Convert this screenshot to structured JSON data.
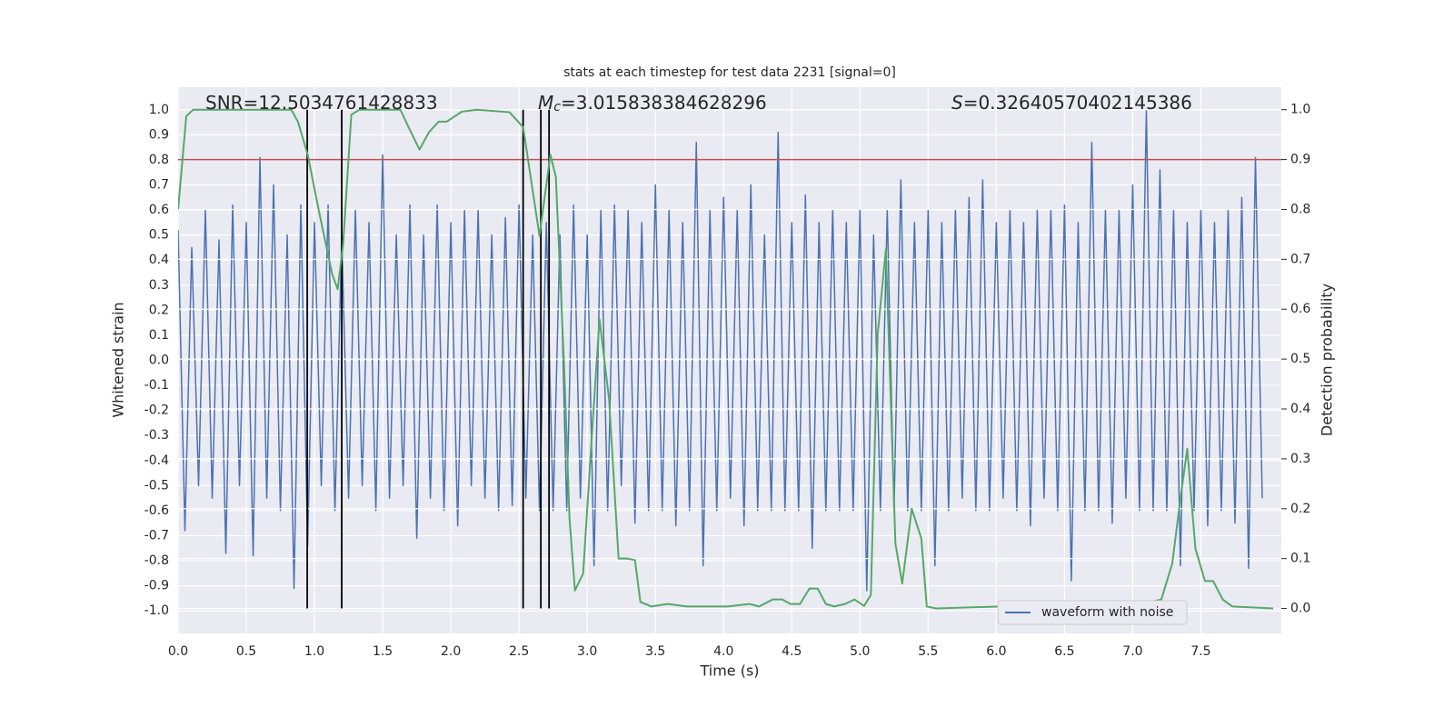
{
  "chart_data": {
    "type": "line",
    "title": "stats at each timestep for test data 2231 [signal=0]",
    "xlabel": "Time (s)",
    "ylabel": "Whitened strain",
    "y2label": "Detection probability",
    "xlim": [
      0,
      8.09
    ],
    "ylim": [
      -1.09,
      1.09
    ],
    "y2lim": [
      -0.05,
      1.045
    ],
    "xticks": [
      {
        "value": 0,
        "label": "0.0"
      },
      0.5,
      {
        "value": 1,
        "label": "1.0"
      },
      1.5,
      {
        "value": 2,
        "label": "2.0"
      },
      2.5,
      {
        "value": 3,
        "label": "3.0"
      },
      3.5,
      {
        "value": 4,
        "label": "4.0"
      },
      4.5,
      {
        "value": 5,
        "label": "5.0"
      },
      5.5,
      {
        "value": 6,
        "label": "6.0"
      },
      6.5,
      {
        "value": 7,
        "label": "7.0"
      },
      7.5
    ],
    "yticks": [
      {
        "value": -1,
        "label": "-1.0"
      },
      -0.9,
      -0.8,
      -0.7,
      -0.6,
      -0.5,
      -0.4,
      -0.3,
      -0.2,
      -0.1,
      {
        "value": 0,
        "label": "0.0"
      },
      0.1,
      0.2,
      0.3,
      0.4,
      0.5,
      0.6,
      0.7,
      0.8,
      0.9,
      {
        "value": 1,
        "label": "1.0"
      }
    ],
    "y2ticks": [
      {
        "value": 0,
        "label": "0.0"
      },
      0.1,
      0.2,
      0.3,
      0.4,
      0.5,
      0.6,
      0.7,
      0.8,
      0.9,
      {
        "value": 1,
        "label": "1.0"
      }
    ],
    "grid": true,
    "legend": "lower right",
    "annotations": [
      {
        "text": "SNR=12.5034761428833"
      },
      {
        "symbol": "M",
        "subscript": "c",
        "text": "=3.015838384628296"
      },
      {
        "symbol": "S",
        "text": "=0.32640570402145386"
      }
    ],
    "hlines": [
      {
        "value": 0.9,
        "axis": "y2",
        "color": "#c44e52"
      }
    ],
    "vlines": {
      "values": [
        0.947,
        1.2,
        2.53,
        2.66,
        2.72
      ],
      "span": [
        0,
        1
      ],
      "axis": "y2",
      "color": "#000000"
    },
    "series": [
      {
        "name": "waveform with noise",
        "color": "#4c72b0",
        "x": [
          0,
          0.05,
          0.1,
          0.15,
          0.2,
          0.25,
          0.3,
          0.35,
          0.4,
          0.45,
          0.5,
          0.55,
          0.6,
          0.65,
          0.7,
          0.75,
          0.8,
          0.85,
          0.9,
          0.95,
          1,
          1.05,
          1.1,
          1.15,
          1.2,
          1.25,
          1.3,
          1.35,
          1.4,
          1.45,
          1.5,
          1.55,
          1.6,
          1.65,
          1.7,
          1.75,
          1.8,
          1.85,
          1.9,
          1.95,
          2,
          2.05,
          2.1,
          2.15,
          2.2,
          2.25,
          2.3,
          2.35,
          2.4,
          2.45,
          2.5,
          2.55,
          2.6,
          2.65,
          2.7,
          2.75,
          2.8,
          2.85,
          2.9,
          2.95,
          3,
          3.05,
          3.1,
          3.15,
          3.2,
          3.25,
          3.3,
          3.35,
          3.4,
          3.45,
          3.5,
          3.55,
          3.6,
          3.65,
          3.7,
          3.75,
          3.8,
          3.85,
          3.9,
          3.95,
          4,
          4.05,
          4.1,
          4.15,
          4.2,
          4.25,
          4.3,
          4.35,
          4.4,
          4.45,
          4.5,
          4.55,
          4.6,
          4.65,
          4.7,
          4.75,
          4.8,
          4.85,
          4.9,
          4.95,
          5,
          5.05,
          5.1,
          5.15,
          5.2,
          5.25,
          5.3,
          5.35,
          5.4,
          5.45,
          5.5,
          5.55,
          5.6,
          5.65,
          5.7,
          5.75,
          5.8,
          5.85,
          5.9,
          5.95,
          6,
          6.05,
          6.1,
          6.15,
          6.2,
          6.25,
          6.3,
          6.35,
          6.4,
          6.45,
          6.5,
          6.55,
          6.6,
          6.65,
          6.7,
          6.75,
          6.8,
          6.85,
          6.9,
          6.95,
          7,
          7.05,
          7.1,
          7.15,
          7.2,
          7.25,
          7.3,
          7.35,
          7.4,
          7.45,
          7.5,
          7.55,
          7.6,
          7.65,
          7.7,
          7.75,
          7.8,
          7.85,
          7.9,
          7.95
        ],
        "values": [
          0.52,
          -0.68,
          0.45,
          -0.5,
          0.6,
          -0.55,
          0.48,
          -0.77,
          0.62,
          -0.5,
          0.55,
          -0.78,
          0.81,
          -0.55,
          0.7,
          -0.6,
          0.5,
          -0.91,
          0.62,
          -0.74,
          0.55,
          -0.5,
          0.62,
          -0.6,
          0.5,
          -0.55,
          0.6,
          -0.5,
          0.55,
          -0.6,
          0.82,
          -0.55,
          0.5,
          -0.5,
          0.62,
          -0.71,
          0.5,
          -0.55,
          0.62,
          -0.6,
          0.55,
          -0.66,
          0.6,
          -0.5,
          0.6,
          -0.55,
          0.5,
          -0.6,
          0.57,
          -0.58,
          0.62,
          -0.55,
          0.5,
          -0.6,
          0.55,
          -0.6,
          0.5,
          -0.6,
          0.62,
          -0.55,
          0.5,
          -0.82,
          0.6,
          -0.6,
          0.62,
          -0.5,
          0.6,
          -0.65,
          0.55,
          -0.6,
          0.7,
          -0.6,
          0.6,
          -0.66,
          0.55,
          -0.6,
          0.87,
          -0.82,
          0.6,
          -0.6,
          0.65,
          -0.55,
          0.6,
          -0.66,
          0.7,
          -0.6,
          0.5,
          -0.6,
          0.91,
          -0.6,
          0.55,
          -0.6,
          0.66,
          -0.75,
          0.55,
          -0.6,
          0.6,
          -0.6,
          0.55,
          -0.6,
          0.6,
          -0.92,
          0.5,
          -0.6,
          0.6,
          -0.6,
          0.72,
          -0.6,
          0.55,
          -0.6,
          0.6,
          -0.82,
          0.55,
          -0.6,
          0.6,
          -0.55,
          0.65,
          -0.6,
          0.72,
          -0.6,
          0.55,
          -0.55,
          0.6,
          -0.6,
          0.55,
          -0.66,
          0.6,
          -0.55,
          0.6,
          -0.6,
          0.62,
          -0.88,
          0.55,
          -0.6,
          0.87,
          -0.6,
          0.6,
          -0.65,
          0.6,
          -0.55,
          0.7,
          -0.6,
          1.0,
          -0.6,
          0.76,
          -0.6,
          0.6,
          -0.82,
          0.55,
          -0.6,
          0.6,
          -0.66,
          0.55,
          -0.6,
          0.6,
          -0.65,
          0.65,
          -0.83,
          0.81,
          -0.55
        ]
      },
      {
        "color": "#55a868",
        "axis": "y2",
        "x": [
          0,
          0.06,
          0.11,
          0.83,
          0.88,
          0.95,
          1.03,
          1.13,
          1.17,
          1.21,
          1.27,
          1.33,
          1.63,
          1.69,
          1.77,
          1.84,
          1.91,
          1.97,
          2.08,
          2.19,
          2.43,
          2.53,
          2.59,
          2.65,
          2.73,
          2.77,
          2.83,
          2.87,
          2.91,
          2.97,
          3.03,
          3.09,
          3.16,
          3.23,
          3.29,
          3.35,
          3.39,
          3.47,
          3.59,
          3.73,
          3.89,
          4.03,
          4.19,
          4.26,
          4.36,
          4.43,
          4.49,
          4.56,
          4.63,
          4.69,
          4.75,
          4.81,
          4.89,
          4.96,
          5.03,
          5.08,
          5.13,
          5.19,
          5.26,
          5.31,
          5.38,
          5.45,
          5.49,
          5.56,
          6.03,
          6.23,
          6.69,
          6.83,
          6.99,
          7.21,
          7.29,
          7.35,
          7.4,
          7.46,
          7.53,
          7.59,
          7.66,
          7.73,
          8.03
        ],
        "values": [
          0.8,
          0.987,
          1.0,
          1.0,
          0.975,
          0.91,
          0.8,
          0.67,
          0.64,
          0.73,
          0.99,
          1.0,
          1.0,
          0.965,
          0.92,
          0.955,
          0.976,
          0.976,
          0.996,
          1.0,
          0.995,
          0.965,
          0.856,
          0.747,
          0.91,
          0.865,
          0.49,
          0.18,
          0.036,
          0.07,
          0.33,
          0.58,
          0.42,
          0.1,
          0.1,
          0.097,
          0.013,
          0.004,
          0.009,
          0.004,
          0.004,
          0.004,
          0.009,
          0.004,
          0.018,
          0.018,
          0.009,
          0.009,
          0.04,
          0.04,
          0.009,
          0.004,
          0.009,
          0.018,
          0.005,
          0.027,
          0.55,
          0.72,
          0.13,
          0.05,
          0.2,
          0.14,
          0.004,
          0,
          0.004,
          0,
          0.004,
          0.009,
          0.004,
          0.018,
          0.09,
          0.22,
          0.32,
          0.12,
          0.055,
          0.055,
          0.018,
          0.004,
          0
        ]
      }
    ]
  }
}
